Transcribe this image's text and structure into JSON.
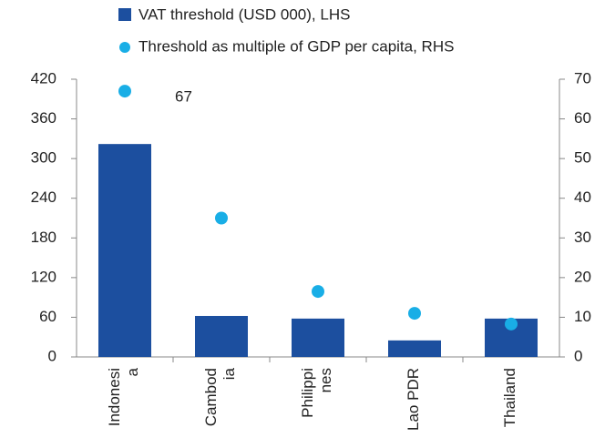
{
  "chart_data": {
    "type": "bar_dot",
    "categories": [
      "Indonesi\na",
      "Cambod\nia",
      "Philippi\nnes",
      "Lao PDR",
      "Thailand"
    ],
    "series": [
      {
        "name": "VAT threshold (USD 000), LHS",
        "color": "#1c4f9f",
        "values": [
          322,
          62,
          58,
          25,
          58
        ]
      },
      {
        "name": "Threshold as multiple of GDP per capita, RHS",
        "color": "#19aee6",
        "axis": "y2",
        "values": [
          67,
          35,
          16.5,
          11,
          8.3
        ]
      }
    ],
    "ylim": [
      0,
      420
    ],
    "yticks": [
      0,
      60,
      120,
      180,
      240,
      300,
      360,
      420
    ],
    "y2lim": [
      0,
      70
    ],
    "y2ticks": [
      0,
      10,
      20,
      30,
      40,
      50,
      60,
      70
    ]
  }
}
